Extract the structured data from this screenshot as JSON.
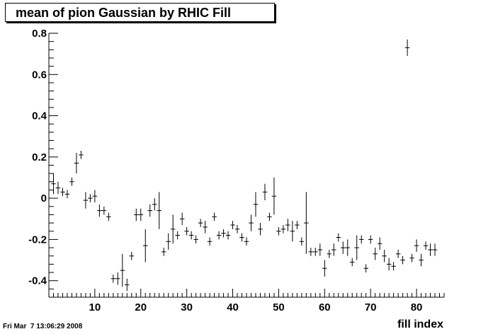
{
  "chart_data": {
    "type": "scatter",
    "title": "mean of pion Gaussian by RHIC Fill",
    "xlabel": "fill index",
    "ylabel": "",
    "xlim": [
      0,
      86
    ],
    "ylim": [
      -0.48,
      0.8
    ],
    "xticks": [
      10,
      20,
      30,
      40,
      50,
      60,
      70,
      80
    ],
    "yticks": [
      -0.4,
      -0.2,
      0,
      0.2,
      0.4,
      0.6,
      0.8
    ],
    "grid": false,
    "points": [
      {
        "x": 1,
        "y": 0.07,
        "err": 0.05
      },
      {
        "x": 2,
        "y": 0.05,
        "err": 0.03
      },
      {
        "x": 3,
        "y": 0.03,
        "err": 0.02
      },
      {
        "x": 4,
        "y": 0.02,
        "err": 0.02
      },
      {
        "x": 5,
        "y": 0.08,
        "err": 0.02
      },
      {
        "x": 6,
        "y": 0.17,
        "err": 0.05
      },
      {
        "x": 7,
        "y": 0.21,
        "err": 0.02
      },
      {
        "x": 8,
        "y": -0.01,
        "err": 0.04
      },
      {
        "x": 9,
        "y": 0.0,
        "err": 0.02
      },
      {
        "x": 10,
        "y": 0.01,
        "err": 0.03
      },
      {
        "x": 11,
        "y": -0.06,
        "err": 0.03
      },
      {
        "x": 12,
        "y": -0.06,
        "err": 0.02
      },
      {
        "x": 13,
        "y": -0.09,
        "err": 0.02
      },
      {
        "x": 14,
        "y": -0.39,
        "err": 0.02
      },
      {
        "x": 15,
        "y": -0.39,
        "err": 0.03
      },
      {
        "x": 16,
        "y": -0.35,
        "err": 0.08
      },
      {
        "x": 17,
        "y": -0.42,
        "err": 0.03
      },
      {
        "x": 18,
        "y": -0.28,
        "err": 0.02
      },
      {
        "x": 19,
        "y": -0.08,
        "err": 0.03
      },
      {
        "x": 20,
        "y": -0.08,
        "err": 0.03
      },
      {
        "x": 21,
        "y": -0.23,
        "err": 0.08
      },
      {
        "x": 22,
        "y": -0.06,
        "err": 0.03
      },
      {
        "x": 23,
        "y": -0.03,
        "err": 0.03
      },
      {
        "x": 24,
        "y": -0.06,
        "err": 0.09
      },
      {
        "x": 25,
        "y": -0.26,
        "err": 0.02
      },
      {
        "x": 26,
        "y": -0.21,
        "err": 0.04
      },
      {
        "x": 27,
        "y": -0.15,
        "err": 0.07
      },
      {
        "x": 28,
        "y": -0.18,
        "err": 0.02
      },
      {
        "x": 29,
        "y": -0.1,
        "err": 0.03
      },
      {
        "x": 30,
        "y": -0.16,
        "err": 0.02
      },
      {
        "x": 31,
        "y": -0.18,
        "err": 0.02
      },
      {
        "x": 32,
        "y": -0.2,
        "err": 0.02
      },
      {
        "x": 33,
        "y": -0.12,
        "err": 0.02
      },
      {
        "x": 34,
        "y": -0.14,
        "err": 0.03
      },
      {
        "x": 35,
        "y": -0.21,
        "err": 0.02
      },
      {
        "x": 36,
        "y": -0.09,
        "err": 0.02
      },
      {
        "x": 37,
        "y": -0.18,
        "err": 0.02
      },
      {
        "x": 38,
        "y": -0.17,
        "err": 0.02
      },
      {
        "x": 39,
        "y": -0.18,
        "err": 0.02
      },
      {
        "x": 40,
        "y": -0.13,
        "err": 0.02
      },
      {
        "x": 41,
        "y": -0.15,
        "err": 0.02
      },
      {
        "x": 42,
        "y": -0.19,
        "err": 0.02
      },
      {
        "x": 43,
        "y": -0.21,
        "err": 0.02
      },
      {
        "x": 44,
        "y": -0.12,
        "err": 0.04
      },
      {
        "x": 45,
        "y": -0.03,
        "err": 0.06
      },
      {
        "x": 46,
        "y": -0.15,
        "err": 0.03
      },
      {
        "x": 47,
        "y": 0.03,
        "err": 0.04
      },
      {
        "x": 48,
        "y": -0.09,
        "err": 0.02
      },
      {
        "x": 49,
        "y": 0.01,
        "err": 0.09
      },
      {
        "x": 50,
        "y": -0.16,
        "err": 0.02
      },
      {
        "x": 51,
        "y": -0.15,
        "err": 0.02
      },
      {
        "x": 52,
        "y": -0.13,
        "err": 0.03
      },
      {
        "x": 53,
        "y": -0.16,
        "err": 0.05
      },
      {
        "x": 54,
        "y": -0.13,
        "err": 0.02
      },
      {
        "x": 55,
        "y": -0.21,
        "err": 0.02
      },
      {
        "x": 56,
        "y": -0.12,
        "err": 0.15
      },
      {
        "x": 57,
        "y": -0.26,
        "err": 0.02
      },
      {
        "x": 58,
        "y": -0.26,
        "err": 0.02
      },
      {
        "x": 59,
        "y": -0.25,
        "err": 0.03
      },
      {
        "x": 60,
        "y": -0.34,
        "err": 0.04
      },
      {
        "x": 61,
        "y": -0.27,
        "err": 0.02
      },
      {
        "x": 62,
        "y": -0.25,
        "err": 0.03
      },
      {
        "x": 63,
        "y": -0.19,
        "err": 0.02
      },
      {
        "x": 64,
        "y": -0.24,
        "err": 0.03
      },
      {
        "x": 65,
        "y": -0.24,
        "err": 0.04
      },
      {
        "x": 66,
        "y": -0.31,
        "err": 0.02
      },
      {
        "x": 67,
        "y": -0.24,
        "err": 0.06
      },
      {
        "x": 68,
        "y": -0.2,
        "err": 0.02
      },
      {
        "x": 69,
        "y": -0.34,
        "err": 0.02
      },
      {
        "x": 70,
        "y": -0.2,
        "err": 0.02
      },
      {
        "x": 71,
        "y": -0.27,
        "err": 0.03
      },
      {
        "x": 72,
        "y": -0.22,
        "err": 0.03
      },
      {
        "x": 73,
        "y": -0.28,
        "err": 0.03
      },
      {
        "x": 74,
        "y": -0.32,
        "err": 0.03
      },
      {
        "x": 75,
        "y": -0.33,
        "err": 0.02
      },
      {
        "x": 76,
        "y": -0.27,
        "err": 0.02
      },
      {
        "x": 77,
        "y": -0.3,
        "err": 0.02
      },
      {
        "x": 78,
        "y": 0.73,
        "err": 0.04
      },
      {
        "x": 79,
        "y": -0.29,
        "err": 0.02
      },
      {
        "x": 80,
        "y": -0.23,
        "err": 0.03
      },
      {
        "x": 81,
        "y": -0.3,
        "err": 0.03
      },
      {
        "x": 82,
        "y": -0.23,
        "err": 0.02
      },
      {
        "x": 83,
        "y": -0.25,
        "err": 0.03
      },
      {
        "x": 84,
        "y": -0.25,
        "err": 0.03
      }
    ]
  },
  "footer": {
    "datestamp": "Fri Mar  7 13:06:29 2008"
  }
}
